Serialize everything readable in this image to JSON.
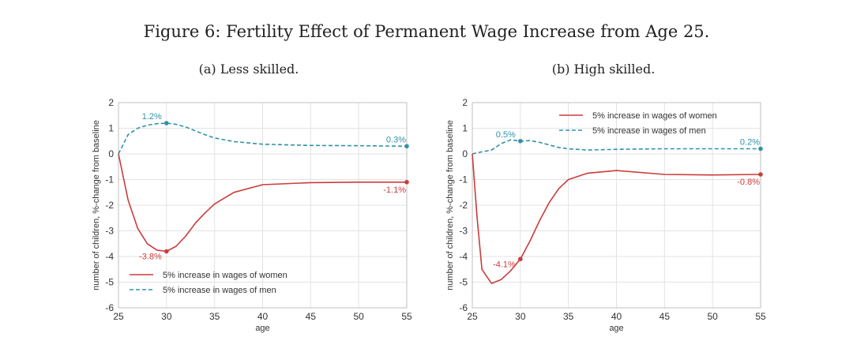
{
  "figure_title": "Figure 6: Fertility Effect of Permanent Wage Increase from Age 25.",
  "colors": {
    "women": "#cc3b3b",
    "men": "#2f93a8",
    "grid": "#e3e3e3",
    "frame": "#bfbfbf"
  },
  "chart_data": [
    {
      "type": "line",
      "title": "(a) Less skilled.",
      "xlabel": "age",
      "ylabel": "number of children, %-change from baseline",
      "xlim": [
        25,
        55
      ],
      "ylim": [
        -6,
        2
      ],
      "xticks": [
        25,
        30,
        35,
        40,
        45,
        50,
        55
      ],
      "yticks": [
        -6,
        -5,
        -4,
        -3,
        -2,
        -1,
        0,
        1,
        2
      ],
      "legend_position": "bottom-left",
      "series": [
        {
          "name": "5% increase in wages of women",
          "key": "women",
          "style": "solid",
          "x": [
            25,
            26,
            27,
            28,
            29,
            30,
            31,
            32,
            33,
            34,
            35,
            37,
            40,
            45,
            50,
            55
          ],
          "y": [
            0,
            -1.8,
            -2.9,
            -3.5,
            -3.75,
            -3.8,
            -3.6,
            -3.2,
            -2.7,
            -2.3,
            -1.95,
            -1.5,
            -1.2,
            -1.12,
            -1.1,
            -1.1
          ]
        },
        {
          "name": "5% increase in wages of men",
          "key": "men",
          "style": "dashed",
          "x": [
            25,
            26,
            27,
            28,
            29,
            30,
            31,
            32,
            33,
            34,
            35,
            37,
            40,
            45,
            50,
            55
          ],
          "y": [
            0,
            0.75,
            1.0,
            1.12,
            1.18,
            1.2,
            1.15,
            1.05,
            0.9,
            0.75,
            0.62,
            0.48,
            0.38,
            0.33,
            0.32,
            0.3
          ]
        }
      ],
      "annotations": [
        {
          "x": 30,
          "y": 1.2,
          "label": "1.2%",
          "key": "men"
        },
        {
          "x": 55,
          "y": 0.3,
          "label": "0.3%",
          "key": "men"
        },
        {
          "x": 30,
          "y": -3.8,
          "label": "-3.8%",
          "key": "women"
        },
        {
          "x": 55,
          "y": -1.1,
          "label": "-1.1%",
          "key": "women"
        }
      ]
    },
    {
      "type": "line",
      "title": "(b) High skilled.",
      "xlabel": "age",
      "ylabel": "number of children, %-change from baseline",
      "xlim": [
        25,
        55
      ],
      "ylim": [
        -6,
        2
      ],
      "xticks": [
        25,
        30,
        35,
        40,
        45,
        50,
        55
      ],
      "yticks": [
        -6,
        -5,
        -4,
        -3,
        -2,
        -1,
        0,
        1,
        2
      ],
      "legend_position": "top-right",
      "series": [
        {
          "name": "5% increase in wages of women",
          "key": "women",
          "style": "solid",
          "x": [
            25,
            25.5,
            26,
            27,
            28,
            29,
            30,
            31,
            32,
            33,
            34,
            35,
            37,
            40,
            45,
            50,
            55
          ],
          "y": [
            0,
            -2.5,
            -4.5,
            -5.05,
            -4.9,
            -4.55,
            -4.1,
            -3.4,
            -2.6,
            -1.9,
            -1.35,
            -1.0,
            -0.75,
            -0.65,
            -0.8,
            -0.82,
            -0.8
          ]
        },
        {
          "name": "5% increase in wages of men",
          "key": "men",
          "style": "dashed",
          "x": [
            25,
            26,
            27,
            28,
            29,
            30,
            31,
            32,
            33,
            34,
            35,
            37,
            40,
            45,
            50,
            55
          ],
          "y": [
            0,
            0.08,
            0.15,
            0.4,
            0.55,
            0.5,
            0.52,
            0.45,
            0.35,
            0.25,
            0.2,
            0.15,
            0.18,
            0.2,
            0.2,
            0.2
          ]
        }
      ],
      "annotations": [
        {
          "x": 30,
          "y": 0.5,
          "label": "0.5%",
          "key": "men"
        },
        {
          "x": 55,
          "y": 0.2,
          "label": "0.2%",
          "key": "men"
        },
        {
          "x": 30,
          "y": -4.1,
          "label": "-4.1%",
          "key": "women"
        },
        {
          "x": 55,
          "y": -0.8,
          "label": "-0.8%",
          "key": "women"
        }
      ]
    }
  ]
}
